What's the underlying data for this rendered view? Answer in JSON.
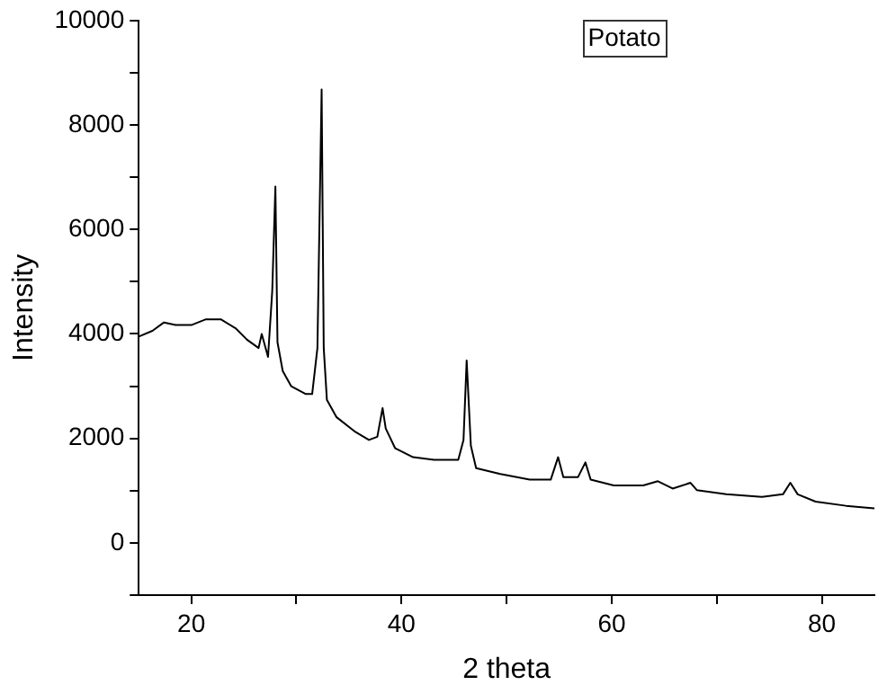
{
  "chart_data": {
    "type": "line",
    "xlabel": "2 theta",
    "ylabel": "Intensity",
    "annotations": [
      "Potato"
    ],
    "x": [
      15,
      16.3,
      17.4,
      18.5,
      20,
      21.4,
      22.8,
      24.2,
      25.3,
      26.4,
      26.7,
      27.3,
      27.7,
      28.0,
      28.2,
      28.7,
      29.5,
      30.9,
      31.5,
      32.0,
      32.4,
      32.6,
      32.9,
      33.8,
      35.5,
      36.9,
      37.7,
      38.2,
      38.5,
      39.4,
      41.1,
      43.1,
      45.4,
      45.9,
      46.2,
      46.6,
      47.1,
      49.4,
      52.2,
      54.2,
      54.9,
      55.4,
      56.8,
      57.5,
      58.0,
      60.2,
      63.0,
      64.4,
      65.8,
      67.5,
      68.1,
      70.9,
      74.3,
      76.3,
      77.0,
      77.7,
      79.4,
      82.3,
      85.0
    ],
    "series": [
      {
        "color": "#000000",
        "values": [
          3950,
          4060,
          4220,
          4170,
          4170,
          4280,
          4280,
          4110,
          3890,
          3730,
          4000,
          3560,
          4820,
          6820,
          3840,
          3290,
          3000,
          2850,
          2850,
          3730,
          8680,
          3730,
          2740,
          2410,
          2140,
          1970,
          2030,
          2580,
          2190,
          1810,
          1640,
          1590,
          1590,
          1970,
          3490,
          1860,
          1430,
          1320,
          1210,
          1210,
          1640,
          1260,
          1260,
          1540,
          1210,
          1100,
          1100,
          1180,
          1040,
          1150,
          1010,
          930,
          880,
          930,
          1150,
          930,
          790,
          710,
          660
        ]
      }
    ],
    "xlim": [
      15,
      85
    ],
    "xticks": [
      20,
      {
        "value": 30,
        "label": null
      },
      40,
      {
        "value": 50,
        "label": null
      },
      60,
      {
        "value": 70,
        "label": null
      },
      80
    ],
    "ylim": [
      -1000,
      10000
    ],
    "yticks": [
      {
        "value": -1000,
        "label": null
      },
      0,
      {
        "value": 1000,
        "label": null
      },
      2000,
      {
        "value": 3000,
        "label": null
      },
      4000,
      {
        "value": 5000,
        "label": null
      },
      6000,
      {
        "value": 7000,
        "label": null
      },
      8000,
      {
        "value": 9000,
        "label": null
      },
      10000
    ],
    "grid": false,
    "legend": false,
    "marker": "none",
    "line_style": "solid"
  }
}
